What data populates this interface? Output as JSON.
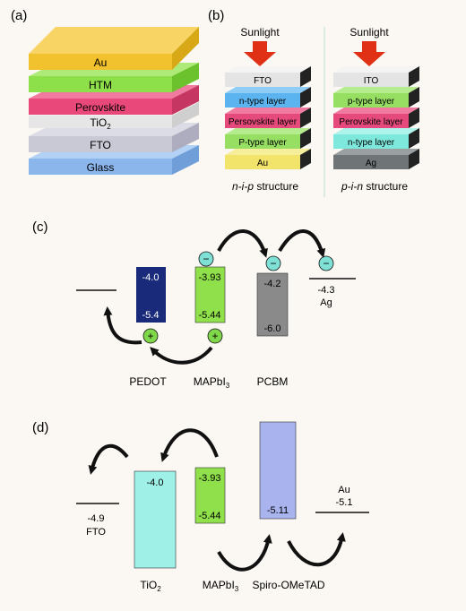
{
  "panel_a": {
    "label": "(a)",
    "layers": [
      "Au",
      "HTM",
      "Perovskite",
      "TiO",
      "FTO",
      "Glass"
    ],
    "tio2_sub": "2"
  },
  "panel_b": {
    "label": "(b)",
    "left": {
      "sunlight": "Sunlight",
      "layers": [
        "FTO",
        "n-type layer",
        "Persovskite layer",
        "P-type layer",
        "Au"
      ],
      "caption_italic": "n-i-p",
      "caption_rest": " structure"
    },
    "right": {
      "sunlight": "Sunlight",
      "layers": [
        "ITO",
        "p-type layer",
        "Perovskite layer",
        "n-type layer",
        "Ag"
      ],
      "caption_italic": "p-i-n",
      "caption_rest": " structure"
    }
  },
  "panel_c": {
    "label": "(c)",
    "pedot_label": "PEDOT",
    "mapbi_label": "MAPbI",
    "mapbi_sub": "3",
    "pcbm_label": "PCBM",
    "box1_top": "-4.0",
    "box1_bottom": "-5.4",
    "box2_top": "-3.93",
    "box2_bottom": "-5.44",
    "box3_top": "-4.2",
    "box3_bottom": "-6.0",
    "ag_value": "-4.3",
    "ag_label": "Ag",
    "electron": "−",
    "hole": "+"
  },
  "panel_d": {
    "label": "(d)",
    "fto_value": "-4.9",
    "fto_label": "FTO",
    "tio2_top": "-4.0",
    "tio2_label": "TiO",
    "tio2_sub": "2",
    "mapbi_top": "-3.93",
    "mapbi_bottom": "-5.44",
    "mapbi_label": "MAPbI",
    "mapbi_sub": "3",
    "spiro_bottom": "-5.11",
    "spiro_label": "Spiro-OMeTAD",
    "au_label": "Au",
    "au_value": "-5.1"
  },
  "colors": {
    "au": "#f2c12e",
    "htm": "#8ee04a",
    "perovskite": "#e8487a",
    "tio2": "#e6e6e6",
    "fto": "#c9c9d6",
    "glass": "#8ab6ec",
    "navy": "#1a2a7a",
    "green": "#8fe04a",
    "gray": "#8a8a8a",
    "cyan": "#9ff0e6",
    "lavender": "#a9b4ef",
    "arrow_red": "#e03016",
    "electron": "#7fe0d6",
    "hole": "#7fd84a"
  }
}
